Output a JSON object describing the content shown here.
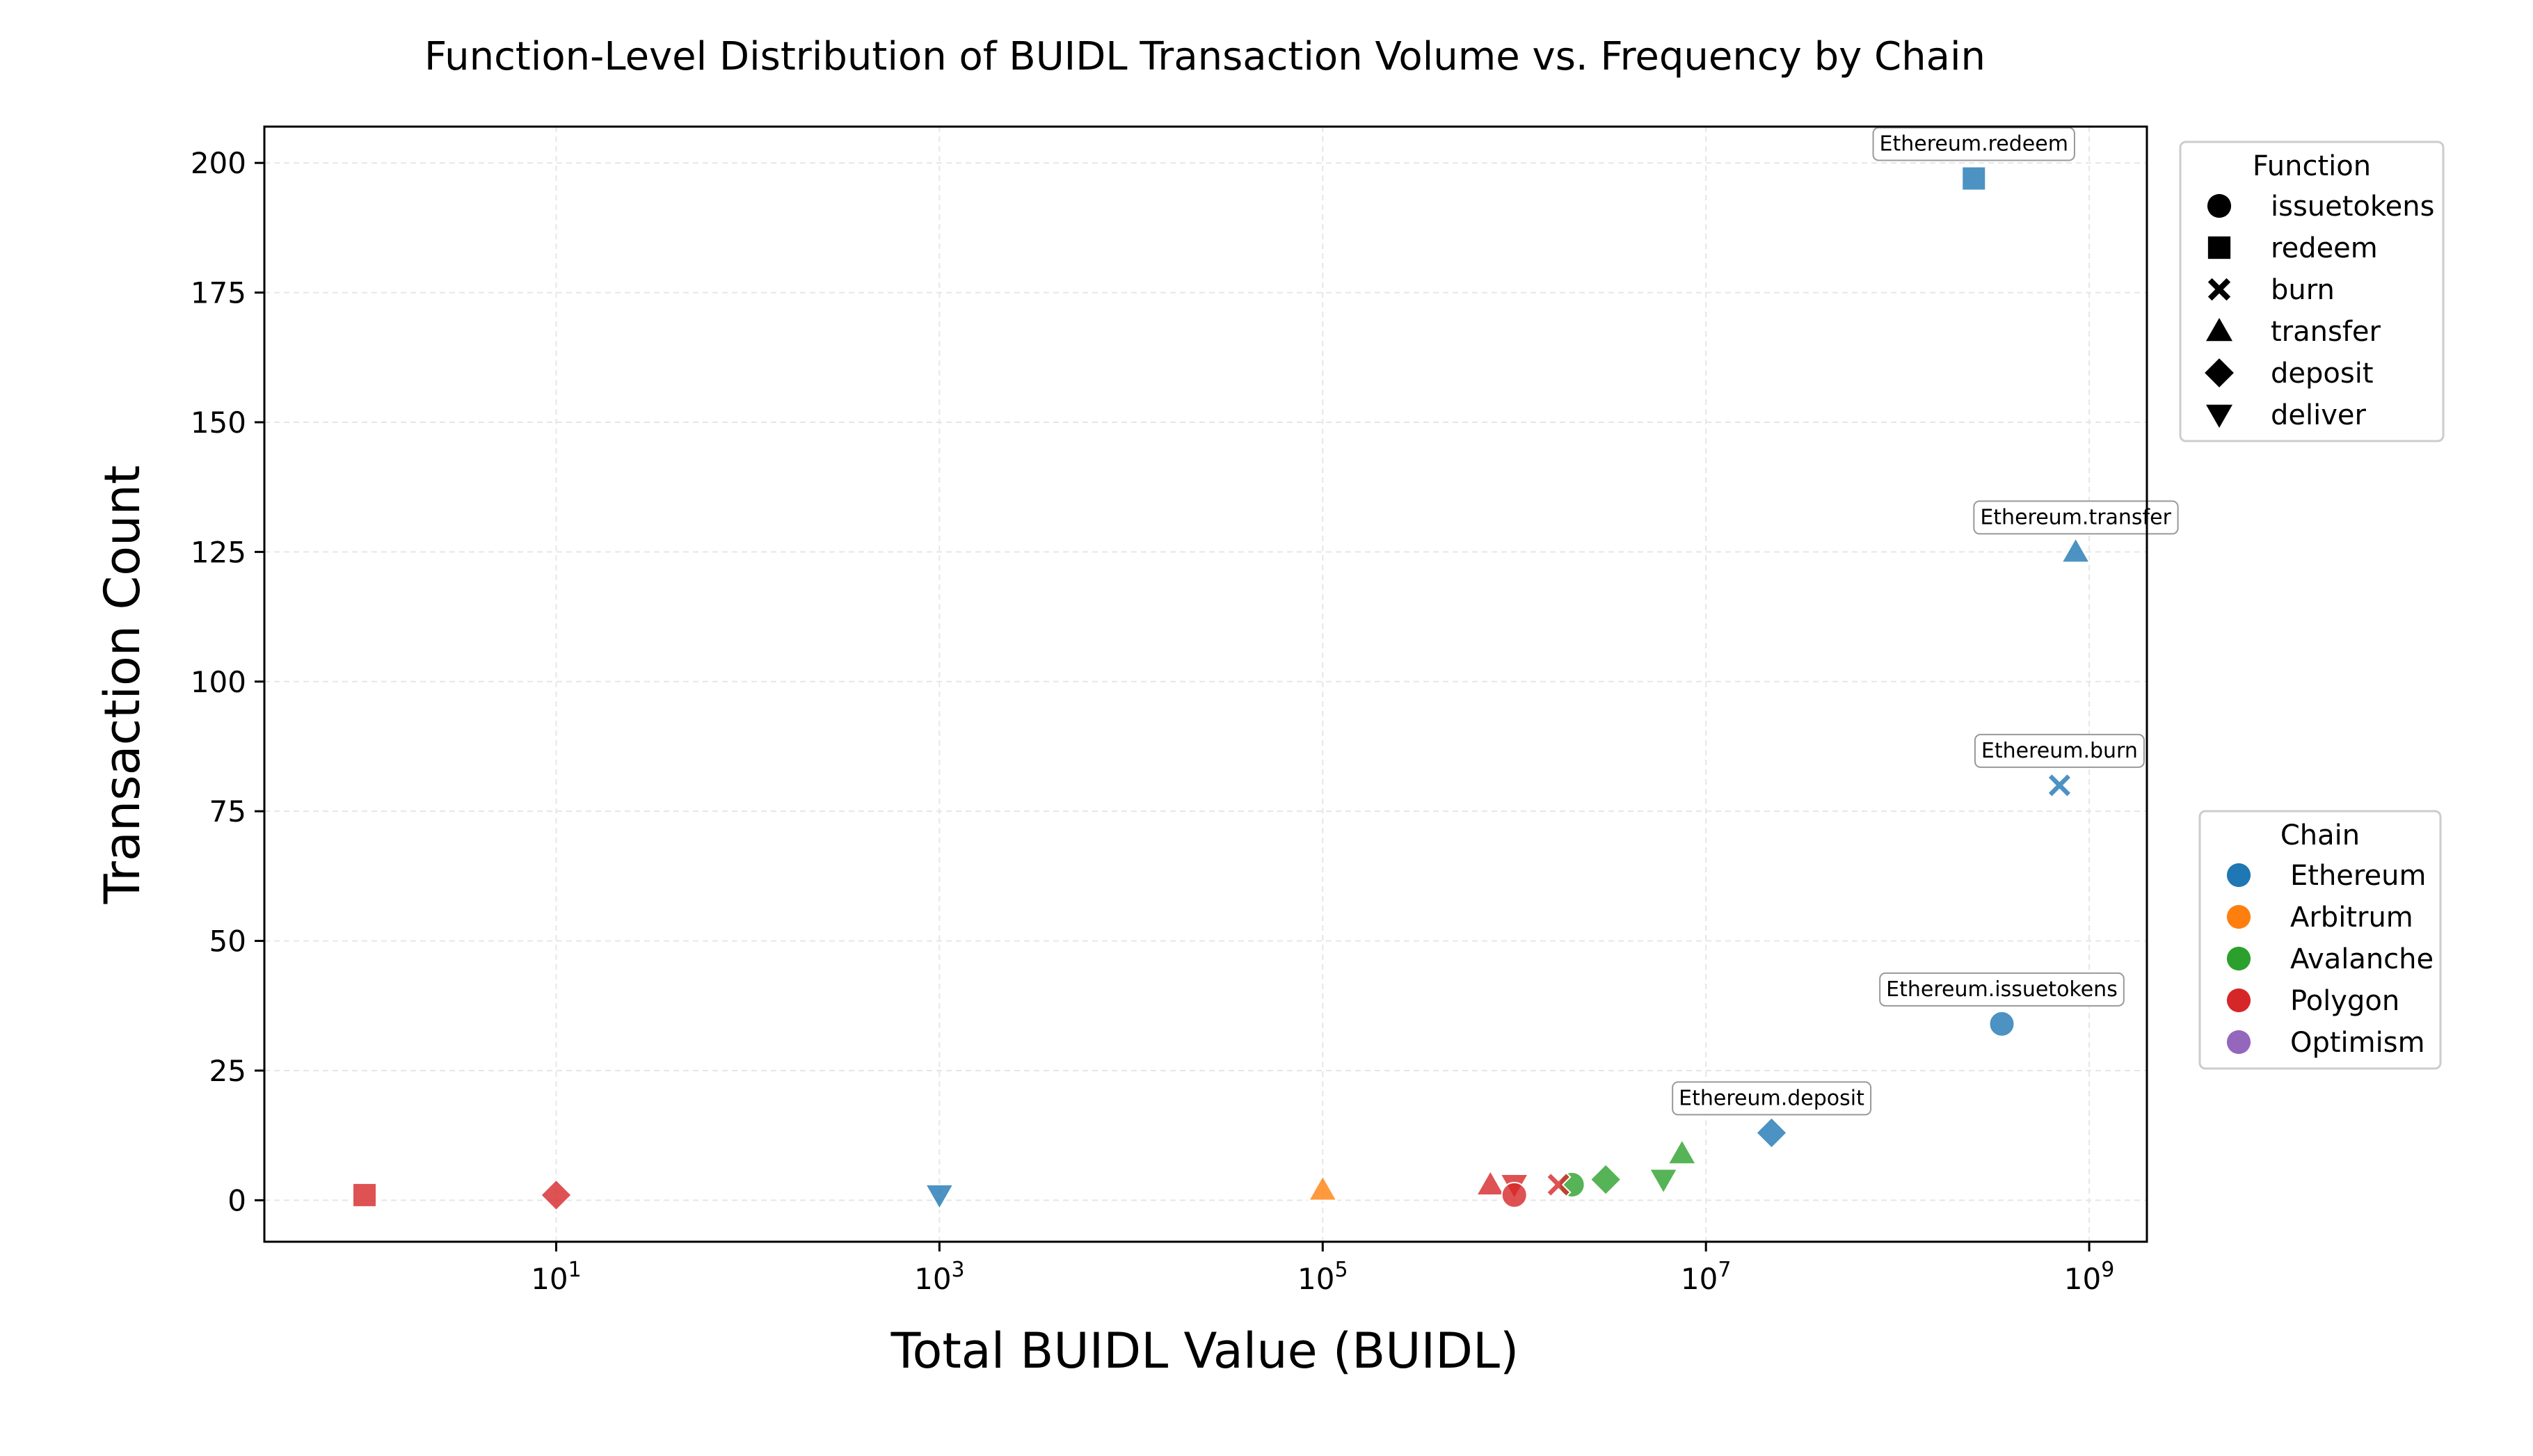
{
  "chart_data": {
    "type": "scatter",
    "title": "Function-Level Distribution of BUIDL Transaction Volume vs. Frequency by Chain",
    "xlabel": "Total BUIDL Value (BUIDL)",
    "ylabel": "Transaction Count",
    "xscale": "log",
    "xlim": [
      0.3,
      2000000000
    ],
    "ylim": [
      -8,
      207
    ],
    "xticks": [
      {
        "value": 10,
        "base": "10",
        "exp": "1"
      },
      {
        "value": 1000,
        "base": "10",
        "exp": "3"
      },
      {
        "value": 100000,
        "base": "10",
        "exp": "5"
      },
      {
        "value": 10000000,
        "base": "10",
        "exp": "7"
      },
      {
        "value": 1000000000,
        "base": "10",
        "exp": "9"
      }
    ],
    "yticks": [
      0,
      25,
      50,
      75,
      100,
      125,
      150,
      175,
      200
    ],
    "grid": true,
    "colors": {
      "Ethereum": "#1f77b4",
      "Arbitrum": "#ff7f0e",
      "Avalanche": "#2ca02c",
      "Polygon": "#d62728",
      "Optimism": "#9467bd"
    },
    "function_legend": {
      "title": "Function",
      "placement": "upper-right-outside",
      "items": [
        {
          "label": "issuetokens",
          "marker": "circle"
        },
        {
          "label": "redeem",
          "marker": "square"
        },
        {
          "label": "burn",
          "marker": "x"
        },
        {
          "label": "transfer",
          "marker": "triangle-up"
        },
        {
          "label": "deposit",
          "marker": "diamond"
        },
        {
          "label": "deliver",
          "marker": "triangle-down"
        }
      ]
    },
    "chain_legend": {
      "title": "Chain",
      "placement": "center-right-outside",
      "items": [
        {
          "label": "Ethereum",
          "color": "#1f77b4"
        },
        {
          "label": "Arbitrum",
          "color": "#ff7f0e"
        },
        {
          "label": "Avalanche",
          "color": "#2ca02c"
        },
        {
          "label": "Polygon",
          "color": "#d62728"
        },
        {
          "label": "Optimism",
          "color": "#9467bd"
        }
      ]
    },
    "points": [
      {
        "chain": "Ethereum",
        "function": "redeem",
        "x": 250000000,
        "y": 197,
        "label": "Ethereum.redeem"
      },
      {
        "chain": "Ethereum",
        "function": "transfer",
        "x": 850000000,
        "y": 125,
        "label": "Ethereum.transfer"
      },
      {
        "chain": "Ethereum",
        "function": "burn",
        "x": 700000000,
        "y": 80,
        "label": "Ethereum.burn"
      },
      {
        "chain": "Ethereum",
        "function": "issuetokens",
        "x": 350000000,
        "y": 34,
        "label": "Ethereum.issuetokens"
      },
      {
        "chain": "Ethereum",
        "function": "deposit",
        "x": 22000000,
        "y": 13,
        "label": "Ethereum.deposit"
      },
      {
        "chain": "Ethereum",
        "function": "deliver",
        "x": 1000,
        "y": 1
      },
      {
        "chain": "Polygon",
        "function": "redeem",
        "x": 1,
        "y": 1
      },
      {
        "chain": "Polygon",
        "function": "deposit",
        "x": 10,
        "y": 1
      },
      {
        "chain": "Arbitrum",
        "function": "transfer",
        "x": 100000,
        "y": 2
      },
      {
        "chain": "Polygon",
        "function": "transfer",
        "x": 750000,
        "y": 3
      },
      {
        "chain": "Polygon",
        "function": "deliver",
        "x": 1000000,
        "y": 3
      },
      {
        "chain": "Polygon",
        "function": "issuetokens",
        "x": 1000000,
        "y": 1
      },
      {
        "chain": "Avalanche",
        "function": "issuetokens",
        "x": 2000000,
        "y": 3
      },
      {
        "chain": "Polygon",
        "function": "burn",
        "x": 1700000,
        "y": 3
      },
      {
        "chain": "Avalanche",
        "function": "deposit",
        "x": 3000000,
        "y": 4
      },
      {
        "chain": "Avalanche",
        "function": "deliver",
        "x": 6000000,
        "y": 4
      },
      {
        "chain": "Avalanche",
        "function": "transfer",
        "x": 7500000,
        "y": 9
      }
    ]
  }
}
